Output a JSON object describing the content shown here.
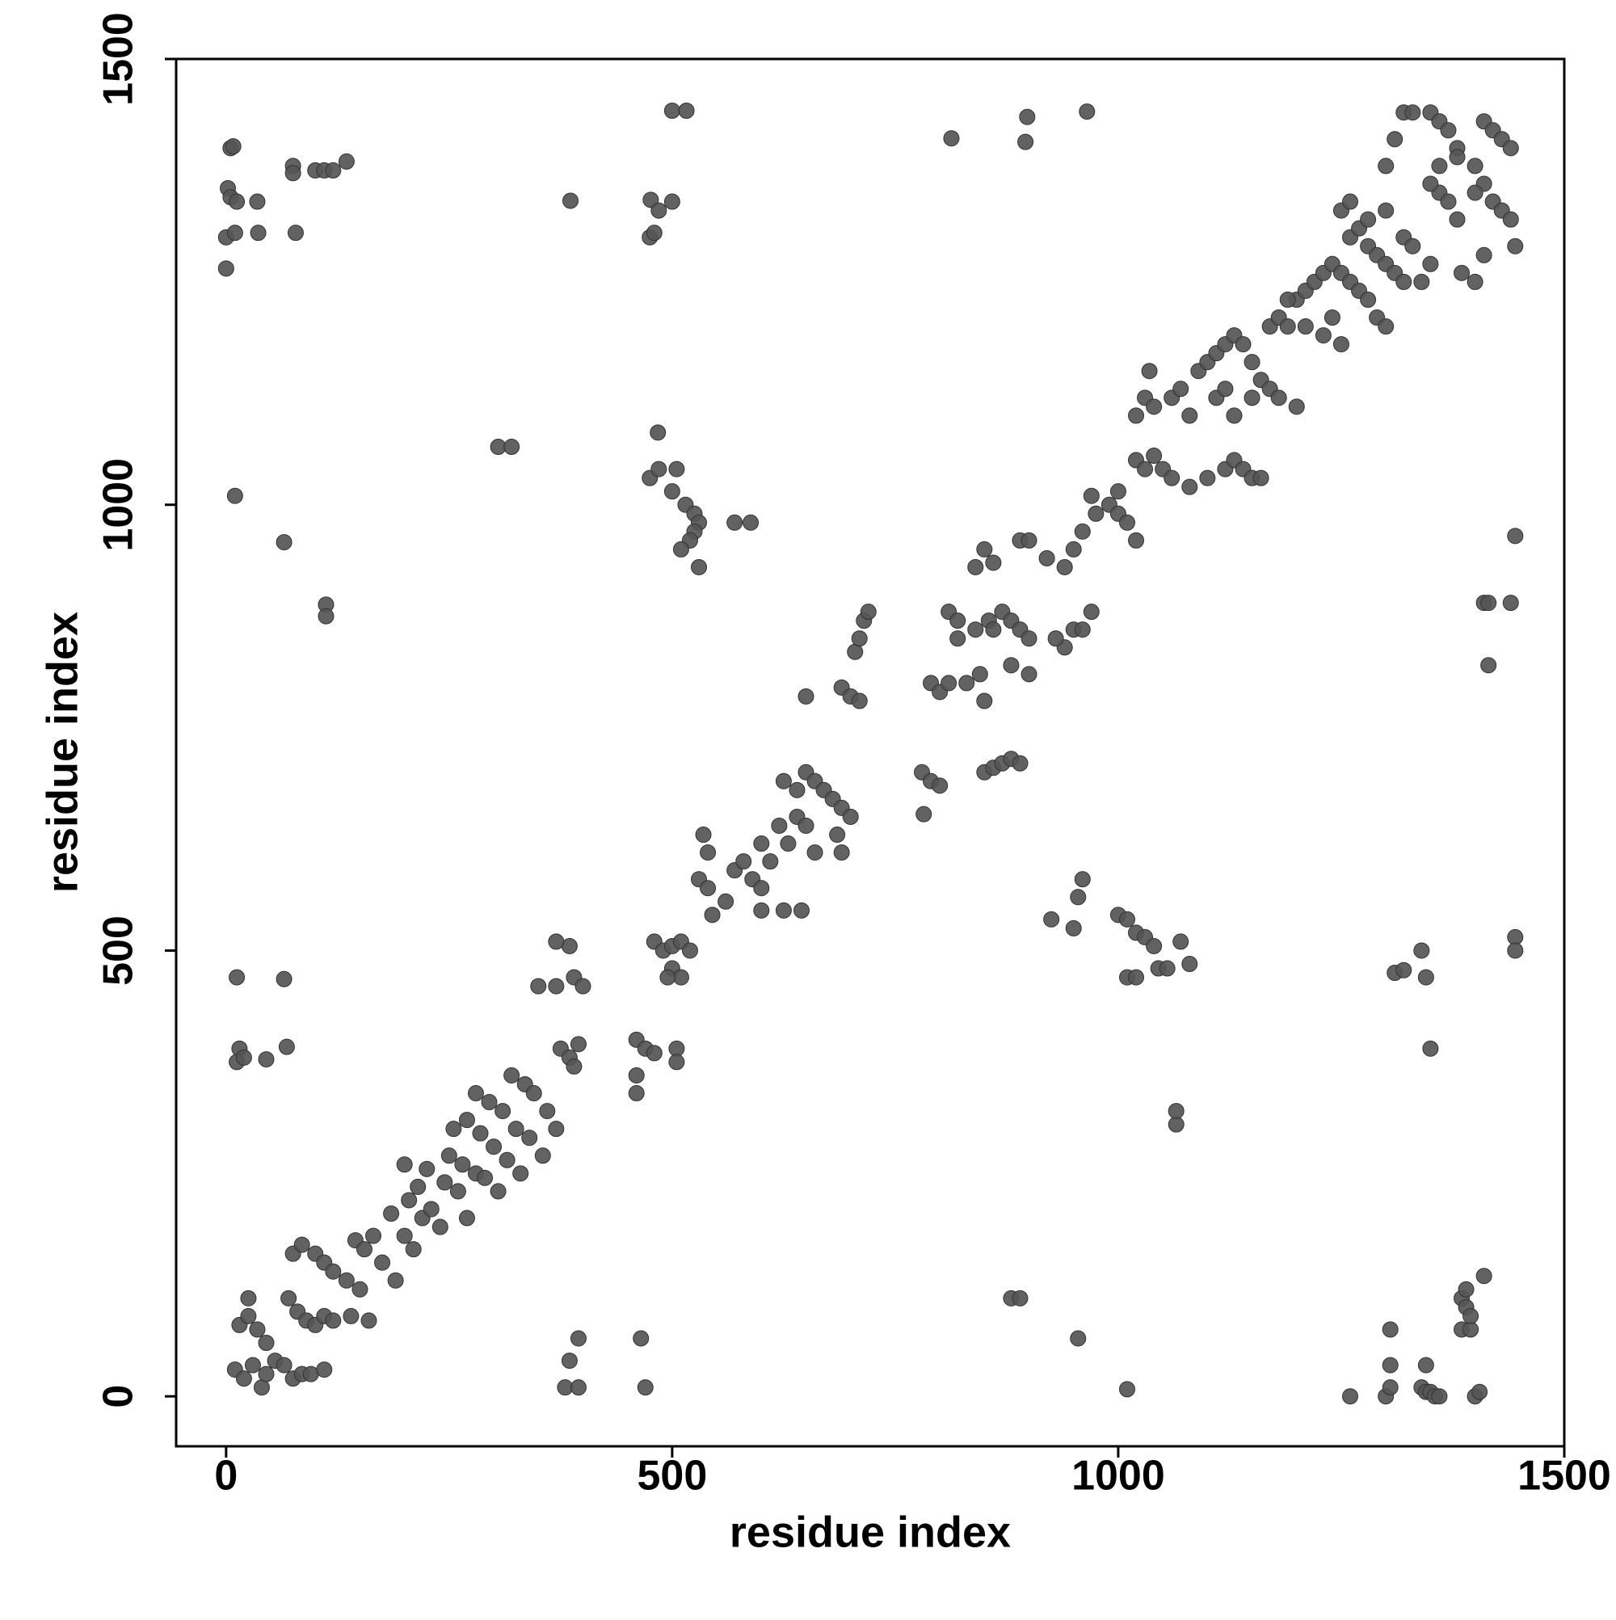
{
  "chart_data": {
    "type": "scatter",
    "xlabel": "residue index",
    "ylabel": "residue index",
    "xlim": [
      -56,
      1500
    ],
    "ylim": [
      -56,
      1500
    ],
    "xticks": [
      0,
      500,
      1000,
      1500
    ],
    "yticks": [
      0,
      500,
      1000,
      1500
    ],
    "color": "#555555",
    "x": [
      5,
      8,
      2,
      5,
      12,
      35,
      0,
      10,
      36,
      78,
      0,
      75,
      75,
      100,
      110,
      120,
      135,
      10,
      65,
      112,
      112,
      12,
      65,
      15,
      12,
      20,
      45,
      68,
      305,
      320,
      386,
      476,
      485,
      500,
      475,
      480,
      500,
      516,
      813,
      896,
      898,
      965,
      484,
      475,
      485,
      500,
      505,
      515,
      525,
      530,
      525,
      520,
      510,
      530,
      570,
      588,
      10,
      20,
      30,
      40,
      45,
      55,
      65,
      75,
      85,
      95,
      110,
      15,
      25,
      35,
      45,
      25,
      70,
      80,
      90,
      100,
      110,
      120,
      75,
      85,
      100,
      110,
      120,
      135,
      150,
      160,
      140,
      145,
      155,
      165,
      175,
      190,
      185,
      200,
      210,
      205,
      220,
      230,
      240,
      200,
      215,
      225,
      245,
      260,
      270,
      250,
      265,
      280,
      290,
      305,
      255,
      270,
      285,
      300,
      315,
      330,
      280,
      295,
      310,
      325,
      340,
      355,
      320,
      335,
      345,
      360,
      370,
      375,
      385,
      390,
      395,
      370,
      390,
      400,
      350,
      385,
      370,
      380,
      395,
      385,
      395,
      465,
      470,
      460,
      460,
      470,
      480,
      505,
      505,
      460,
      480,
      490,
      500,
      510,
      520,
      500,
      510,
      495,
      530,
      540,
      535,
      540,
      545,
      560,
      570,
      580,
      590,
      600,
      600,
      610,
      620,
      630,
      640,
      650,
      625,
      645,
      600,
      650,
      660,
      670,
      680,
      690,
      700,
      640,
      625,
      660,
      690,
      685,
      650,
      690,
      700,
      710,
      705,
      710,
      715,
      720,
      780,
      790,
      800,
      782,
      850,
      860,
      870,
      880,
      890,
      790,
      800,
      810,
      820,
      830,
      845,
      850,
      840,
      855,
      860,
      870,
      880,
      890,
      900,
      880,
      900,
      810,
      820,
      840,
      850,
      860,
      890,
      900,
      940,
      950,
      960,
      970,
      930,
      920,
      940,
      950,
      960,
      975,
      990,
      1000,
      1010,
      1020,
      970,
      1000,
      1410,
      1415,
      1440,
      1415,
      1445,
      1445,
      1445,
      1310,
      1320,
      1340,
      1345,
      1350,
      1000,
      1010,
      1020,
      1030,
      1040,
      1045,
      1055,
      1070,
      1080,
      925,
      950,
      955,
      960,
      1010,
      1020,
      1065,
      1065,
      880,
      890,
      955,
      1010,
      1260,
      1300,
      1305,
      1305,
      1305,
      1340,
      1345,
      1350,
      1355,
      1360,
      1345,
      1400,
      1405,
      1385,
      1395,
      1385,
      1390,
      1390,
      1395,
      1410,
      1020,
      1030,
      1040,
      1050,
      1060,
      1080,
      1100,
      1120,
      1130,
      1140,
      1150,
      1160,
      1020,
      1030,
      1035,
      1040,
      1060,
      1070,
      1080,
      1090,
      1100,
      1110,
      1120,
      1130,
      1140,
      1150,
      1160,
      1170,
      1180,
      1200,
      1110,
      1120,
      1130,
      1150,
      1170,
      1180,
      1190,
      1200,
      1210,
      1220,
      1230,
      1240,
      1250,
      1260,
      1270,
      1280,
      1290,
      1300,
      1190,
      1210,
      1230,
      1250,
      1240,
      1260,
      1270,
      1280,
      1290,
      1300,
      1310,
      1320,
      1340,
      1250,
      1260,
      1280,
      1300,
      1320,
      1330,
      1350,
      1360,
      1370,
      1380,
      1300,
      1310,
      1320,
      1330,
      1350,
      1360,
      1370,
      1380,
      1400,
      1410,
      1420,
      1430,
      1440,
      1445,
      1410,
      1420,
      1430,
      1440,
      1385,
      1400,
      1410,
      1350,
      1360,
      1380,
      1400
    ],
    "y": [
      1400,
      1402,
      1355,
      1345,
      1340,
      1340,
      1300,
      1305,
      1305,
      1305,
      1265,
      1380,
      1372,
      1375,
      1375,
      1375,
      1385,
      1010,
      958,
      888,
      875,
      470,
      468,
      390,
      375,
      380,
      378,
      392,
      1065,
      1065,
      1341,
      1342,
      1330,
      1340,
      1300,
      1305,
      1442,
      1442,
      1411,
      1407,
      1435,
      1441,
      1081,
      1030,
      1040,
      1015,
      1040,
      1000,
      990,
      980,
      970,
      960,
      950,
      930,
      980,
      980,
      30,
      20,
      35,
      10,
      25,
      40,
      35,
      20,
      25,
      25,
      30,
      80,
      90,
      75,
      60,
      110,
      110,
      95,
      85,
      80,
      90,
      85,
      160,
      170,
      160,
      150,
      140,
      130,
      120,
      85,
      90,
      175,
      165,
      180,
      150,
      130,
      205,
      180,
      165,
      220,
      200,
      210,
      190,
      260,
      235,
      255,
      240,
      230,
      200,
      270,
      260,
      250,
      245,
      230,
      300,
      310,
      295,
      280,
      265,
      250,
      340,
      330,
      320,
      300,
      290,
      270,
      360,
      350,
      340,
      320,
      300,
      390,
      380,
      370,
      395,
      460,
      470,
      460,
      460,
      505,
      510,
      10,
      10,
      40,
      65,
      65,
      10,
      360,
      400,
      390,
      385,
      390,
      375,
      340,
      510,
      500,
      505,
      510,
      500,
      480,
      470,
      470,
      580,
      570,
      630,
      610,
      540,
      555,
      590,
      600,
      580,
      570,
      620,
      600,
      640,
      620,
      650,
      640,
      545,
      545,
      545,
      700,
      690,
      680,
      670,
      660,
      650,
      680,
      690,
      610,
      610,
      630,
      785,
      795,
      785,
      780,
      835,
      850,
      870,
      880,
      700,
      690,
      685,
      653,
      700,
      705,
      710,
      715,
      710,
      800,
      790,
      800,
      850,
      800,
      810,
      780,
      860,
      870,
      860,
      880,
      870,
      860,
      850,
      820,
      810,
      880,
      870,
      930,
      950,
      935,
      960,
      960,
      840,
      860,
      860,
      880,
      850,
      940,
      930,
      950,
      970,
      990,
      1000,
      990,
      980,
      960,
      1010,
      1015,
      890,
      890,
      890,
      820,
      965,
      515,
      500,
      475,
      478,
      500,
      470,
      390,
      540,
      535,
      520,
      515,
      505,
      480,
      480,
      510,
      485,
      535,
      525,
      560,
      580,
      470,
      470,
      305,
      320,
      110,
      110,
      65,
      8,
      0,
      0,
      10,
      35,
      75,
      10,
      5,
      5,
      0,
      0,
      35,
      0,
      5,
      75,
      75,
      110,
      120,
      100,
      90,
      135,
      1050,
      1040,
      1055,
      1040,
      1030,
      1020,
      1030,
      1040,
      1050,
      1040,
      1030,
      1030,
      1100,
      1120,
      1150,
      1110,
      1120,
      1130,
      1100,
      1150,
      1160,
      1170,
      1180,
      1190,
      1180,
      1160,
      1140,
      1130,
      1120,
      1110,
      1120,
      1130,
      1100,
      1120,
      1200,
      1210,
      1200,
      1230,
      1240,
      1250,
      1260,
      1270,
      1260,
      1250,
      1240,
      1230,
      1210,
      1200,
      1230,
      1200,
      1190,
      1180,
      1210,
      1300,
      1310,
      1290,
      1280,
      1270,
      1260,
      1250,
      1250,
      1330,
      1340,
      1320,
      1330,
      1300,
      1290,
      1270,
      1350,
      1340,
      1320,
      1380,
      1410,
      1440,
      1440,
      1440,
      1430,
      1420,
      1400,
      1380,
      1360,
      1340,
      1330,
      1320,
      1290,
      1430,
      1420,
      1410,
      1400,
      1260,
      1250,
      1280,
      1360,
      1380,
      1390,
      1350
    ]
  }
}
